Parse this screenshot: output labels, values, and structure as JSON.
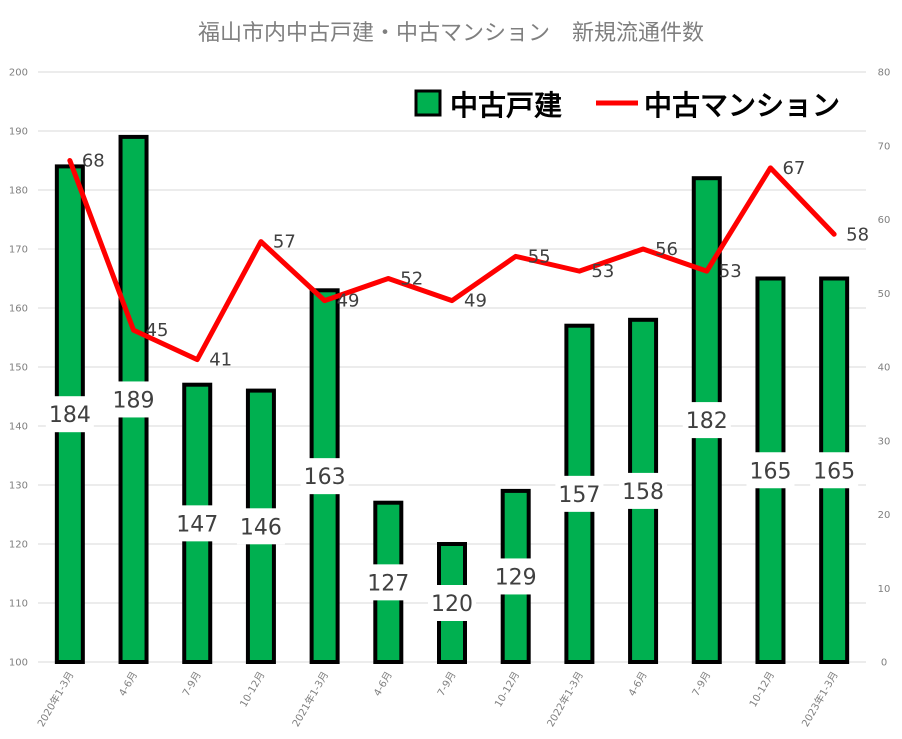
{
  "colors": {
    "bar_fill": "#00b050",
    "bar_stroke": "#000000",
    "line": "#ff0000",
    "grid": "#d9d9d9",
    "text": "#7f7f7f"
  },
  "chart_data": {
    "type": "bar",
    "title": "福山市内中古戸建・中古マンション　新規流通件数",
    "categories": [
      "2020年1-3月",
      "4-6月",
      "7-9月",
      "10-12月",
      "2021年1-3月",
      "4-6月",
      "7-9月",
      "10-12月",
      "2022年1-3月",
      "4-6月",
      "7-9月",
      "10-12月",
      "2023年1-3月"
    ],
    "series": [
      {
        "name": "中古戸建",
        "type": "bar",
        "axis": "left",
        "values": [
          184,
          189,
          147,
          146,
          163,
          127,
          120,
          129,
          157,
          158,
          182,
          165,
          165
        ]
      },
      {
        "name": "中古マンション",
        "type": "line",
        "axis": "right",
        "values": [
          68,
          45,
          41,
          57,
          49,
          52,
          49,
          55,
          53,
          56,
          53,
          67,
          58
        ]
      }
    ],
    "y_left": {
      "min": 100,
      "max": 200,
      "ticks": [
        100,
        110,
        120,
        130,
        140,
        150,
        160,
        170,
        180,
        190,
        200
      ]
    },
    "y_right": {
      "min": 0,
      "max": 80,
      "ticks": [
        0,
        10,
        20,
        30,
        40,
        50,
        60,
        70,
        80
      ]
    },
    "grid": true,
    "legend": "top-right"
  }
}
